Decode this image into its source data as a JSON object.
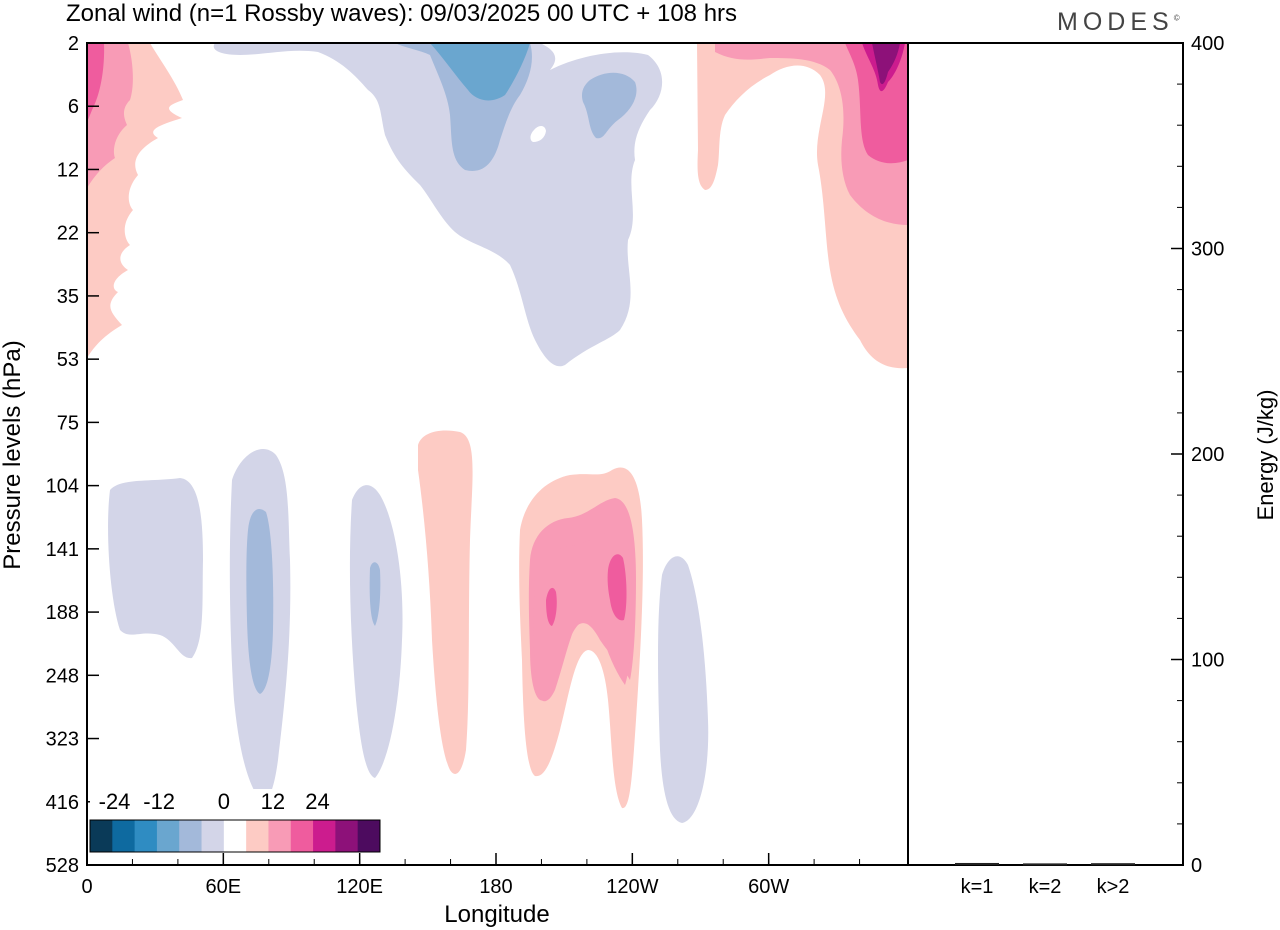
{
  "title": "Zonal wind (n=1 Rossby waves):  09/03/2025  00 UTC  + 108 hrs",
  "logo": "MODES",
  "logo_mark": "©",
  "chart_data": [
    {
      "type": "heatmap",
      "title": "Zonal wind (n=1 Rossby waves):  09/03/2025  00 UTC  + 108 hrs",
      "xlabel": "Longitude",
      "ylabel": "Pressure levels (hPa)",
      "x_ticks": [
        "0",
        "60E",
        "120E",
        "180",
        "120W",
        "60W"
      ],
      "y_ticks": [
        "2",
        "6",
        "12",
        "22",
        "35",
        "53",
        "75",
        "104",
        "141",
        "188",
        "248",
        "323",
        "416",
        "528"
      ],
      "xlim": [
        0,
        345
      ],
      "colorbar": {
        "labels": [
          "-24",
          "-12",
          "0",
          "12",
          "24"
        ],
        "levels": [
          -30,
          -24,
          -18,
          -12,
          -6,
          0,
          6,
          12,
          18,
          24,
          30
        ],
        "colors": [
          "#0a3a58",
          "#0e6aa0",
          "#2f8cc2",
          "#6aa6cf",
          "#a3b9da",
          "#d3d5e8",
          "#ffffff",
          "#fdcbc4",
          "#f89bb6",
          "#ef5c9e",
          "#cc1c8e",
          "#8d1179",
          "#4d0b5f"
        ]
      },
      "regions": [
        {
          "level": -6,
          "lon": [
            55,
            80
          ],
          "p": [
            95,
            430
          ]
        },
        {
          "level": -12,
          "lon": [
            70,
            80
          ],
          "p": [
            120,
            260
          ]
        },
        {
          "level": 6,
          "lon": [
            140,
            165
          ],
          "p": [
            70,
            400
          ]
        },
        {
          "level": 12,
          "lon": [
            190,
            225
          ],
          "p": [
            110,
            300
          ]
        },
        {
          "level": 18,
          "lon": [
            195,
            220
          ],
          "p": [
            140,
            230
          ]
        },
        {
          "level": -6,
          "lon": [
            120,
            138
          ],
          "p": [
            100,
            420
          ]
        },
        {
          "level": 30,
          "lon": [
            335,
            345
          ],
          "p": [
            2,
            6
          ]
        }
      ]
    },
    {
      "type": "bar",
      "ylabel": "Energy (J/kg)",
      "categories": [
        "k=1",
        "k=2",
        "k>2"
      ],
      "values": [
        0.5,
        0.3,
        0.4
      ],
      "ylim": [
        0,
        400
      ],
      "y_ticks": [
        "0",
        "100",
        "200",
        "300",
        "400"
      ]
    }
  ]
}
